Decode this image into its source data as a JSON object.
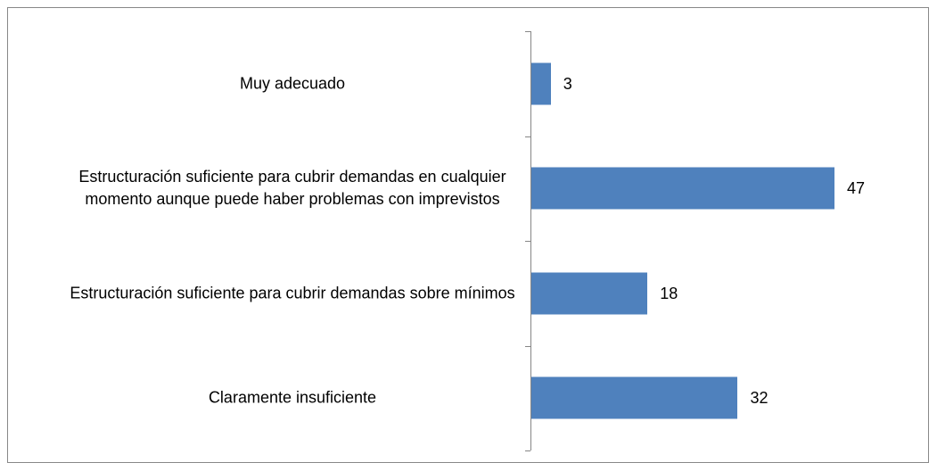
{
  "chart_data": {
    "type": "bar",
    "orientation": "horizontal",
    "categories": [
      "Muy adecuado",
      "Estructuración suficiente para cubrir demandas en cualquier momento aunque puede haber problemas con imprevistos",
      "Estructuración suficiente para cubrir demandas sobre mínimos",
      "Claramente insuficiente"
    ],
    "values": [
      3,
      47,
      18,
      32
    ],
    "color": "#4f81bd"
  }
}
